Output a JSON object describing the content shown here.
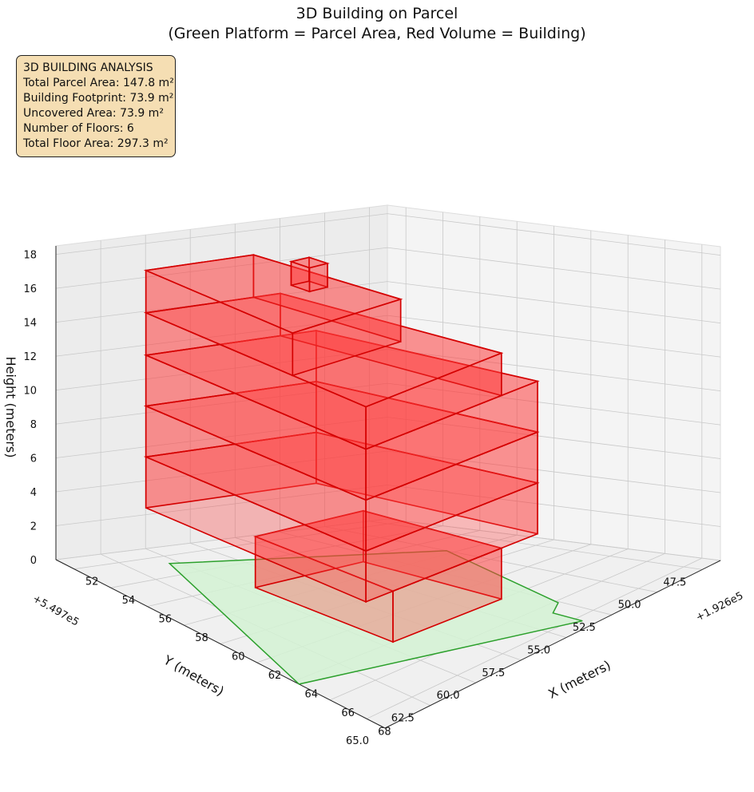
{
  "title_line1": "3D Building on Parcel",
  "title_line2": "(Green Platform = Parcel Area, Red Volume = Building)",
  "info_box": {
    "heading": "3D BUILDING ANALYSIS",
    "lines": [
      "Total Parcel Area: 147.8 m²",
      "Building Footprint: 73.9 m²",
      "Uncovered Area: 73.9 m²",
      "Number of Floors: 6",
      "Total Floor Area: 297.3 m²"
    ]
  },
  "colors": {
    "parcel_fill": "#d4f2d4",
    "parcel_edge": "#2ca02c",
    "building_fill": "#ff3b3b",
    "building_edge": "#d40000",
    "info_box_bg": "#f5deb3",
    "pane": "#f2f2f2",
    "grid": "#c8c8c8"
  },
  "chart_data": {
    "type": "3d-surface",
    "title": "3D Building on Parcel\n(Green Platform = Parcel Area, Red Volume = Building)",
    "xlabel": "X (meters)",
    "ylabel": "Y (meters)",
    "zlabel": "Height (meters)",
    "x_offset_label": "+1.926e5",
    "y_offset_label": "+5.497e5",
    "xlim": [
      51,
      69
    ],
    "ylim": [
      46.5,
      65
    ],
    "zlim": [
      0,
      18.5
    ],
    "x_ticks": [
      52,
      54,
      56,
      58,
      60,
      62,
      64,
      66,
      68
    ],
    "y_ticks": [
      47.5,
      50.0,
      52.5,
      55.0,
      57.5,
      60.0,
      62.5,
      65.0
    ],
    "z_ticks": [
      0,
      2,
      4,
      6,
      8,
      10,
      12,
      14,
      16,
      18
    ],
    "parcel_polygon": [
      [
        52.8,
        60.5
      ],
      [
        64.3,
        65.0
      ],
      [
        68.4,
        53.5
      ],
      [
        66.8,
        53.5
      ],
      [
        66.2,
        52.6
      ],
      [
        57.6,
        50.0
      ]
    ],
    "building_boxes": [
      {
        "name": "base-floor",
        "x": [
          56.5,
          64.0
        ],
        "y": [
          53.5,
          59.5
        ],
        "z": [
          0,
          3.0
        ]
      },
      {
        "name": "floor-2",
        "x": [
          52.0,
          64.0
        ],
        "y": [
          51.5,
          61.0
        ],
        "z": [
          3.0,
          6.0
        ]
      },
      {
        "name": "floor-3",
        "x": [
          52.0,
          64.0
        ],
        "y": [
          51.5,
          61.0
        ],
        "z": [
          6.0,
          9.0
        ]
      },
      {
        "name": "floor-4",
        "x": [
          52.0,
          64.0
        ],
        "y": [
          51.5,
          61.0
        ],
        "z": [
          9.0,
          12.0
        ]
      },
      {
        "name": "floor-5",
        "x": [
          52.0,
          64.0
        ],
        "y": [
          53.5,
          61.0
        ],
        "z": [
          12.0,
          14.5
        ]
      },
      {
        "name": "floor-6",
        "x": [
          52.0,
          60.0
        ],
        "y": [
          55.0,
          61.0
        ],
        "z": [
          14.5,
          17.0
        ]
      },
      {
        "name": "roof-tower",
        "x": [
          56.0,
          57.0
        ],
        "y": [
          56.0,
          57.0
        ],
        "z": [
          17.0,
          18.4
        ]
      }
    ]
  }
}
